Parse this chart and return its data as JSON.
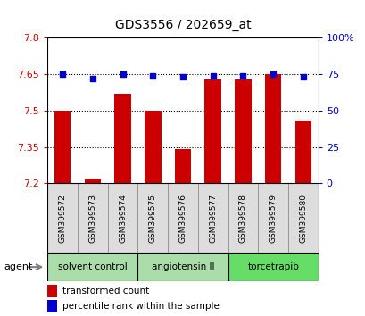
{
  "title": "GDS3556 / 202659_at",
  "samples": [
    "GSM399572",
    "GSM399573",
    "GSM399574",
    "GSM399575",
    "GSM399576",
    "GSM399577",
    "GSM399578",
    "GSM399579",
    "GSM399580"
  ],
  "transformed_counts": [
    7.5,
    7.22,
    7.57,
    7.5,
    7.34,
    7.63,
    7.63,
    7.65,
    7.46
  ],
  "percentile_ranks": [
    75,
    72,
    75,
    74,
    73,
    74,
    74,
    75,
    73
  ],
  "ylim_left": [
    7.2,
    7.8
  ],
  "ylim_right": [
    0,
    100
  ],
  "yticks_left": [
    7.2,
    7.35,
    7.5,
    7.65,
    7.8
  ],
  "yticks_right": [
    0,
    25,
    50,
    75,
    100
  ],
  "ytick_labels_left": [
    "7.2",
    "7.35",
    "7.5",
    "7.65",
    "7.8"
  ],
  "ytick_labels_right": [
    "0",
    "25",
    "50",
    "75",
    "100%"
  ],
  "bar_color": "#cc0000",
  "dot_color": "#0000cc",
  "agent_label": "agent",
  "legend_bar_label": "transformed count",
  "legend_dot_label": "percentile rank within the sample",
  "background_color": "#ffffff",
  "tick_color_left": "#cc0000",
  "tick_color_right": "#0000cc",
  "dotted_lines": [
    7.35,
    7.5,
    7.65
  ],
  "group_defs": [
    {
      "label": "solvent control",
      "indices": [
        0,
        1,
        2
      ],
      "color": "#aaddaa"
    },
    {
      "label": "angiotensin II",
      "indices": [
        3,
        4,
        5
      ],
      "color": "#aaddaa"
    },
    {
      "label": "torcetrapib",
      "indices": [
        6,
        7,
        8
      ],
      "color": "#66dd66"
    }
  ],
  "sample_box_color": "#dddddd",
  "sample_box_edge": "#888888"
}
